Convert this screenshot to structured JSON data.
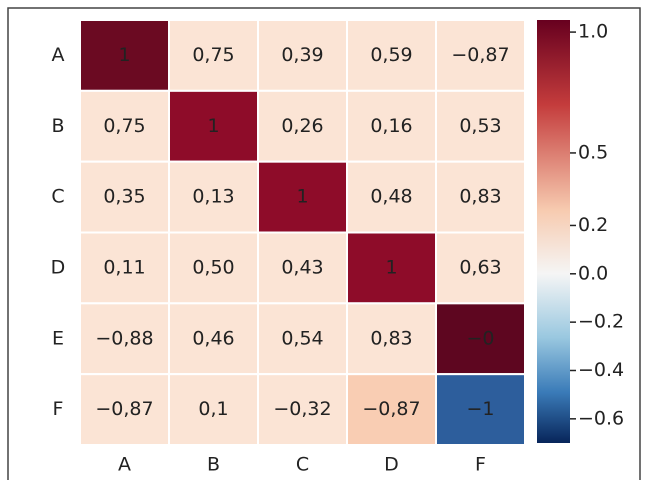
{
  "chart_data": {
    "type": "heatmap",
    "x_categories": [
      "A",
      "B",
      "C",
      "D",
      "F"
    ],
    "y_categories": [
      "A",
      "B",
      "C",
      "D",
      "E",
      "F"
    ],
    "values": [
      [
        1,
        0.75,
        0.39,
        0.59,
        -0.87
      ],
      [
        0.75,
        1,
        0.26,
        0.16,
        0.53
      ],
      [
        0.35,
        0.13,
        1,
        0.48,
        0.83
      ],
      [
        0.11,
        0.5,
        0.43,
        1,
        0.63
      ],
      [
        -0.88,
        0.46,
        0.54,
        0.83,
        0
      ],
      [
        -0.87,
        0.1,
        -0.32,
        -0.87,
        -1
      ]
    ],
    "value_labels": [
      [
        "1",
        "0,75",
        "0,39",
        "0,59",
        "−0,87"
      ],
      [
        "0,75",
        "1",
        "0,26",
        "0,16",
        "0,53"
      ],
      [
        "0,35",
        "0,13",
        "1",
        "0,48",
        "0,83"
      ],
      [
        "0,11",
        "0,50",
        "0,43",
        "1",
        "0,63"
      ],
      [
        "−0,88",
        "0,46",
        "0,54",
        "0,83",
        "−0"
      ],
      [
        "−0,87",
        "0,1",
        "−0,32",
        "−0,87",
        "−1"
      ]
    ],
    "colors": [
      [
        "#6b0a22",
        "#fbe4d5",
        "#fbe4d5",
        "#fbe4d5",
        "#fbe4d5"
      ],
      [
        "#fbe4d5",
        "#8e0c29",
        "#fbe4d5",
        "#fbe4d5",
        "#fbe4d5"
      ],
      [
        "#fbe4d5",
        "#fbe4d5",
        "#8e0c29",
        "#fbe4d5",
        "#fbe4d5"
      ],
      [
        "#fbe4d5",
        "#fbe4d5",
        "#fbe4d5",
        "#8e0c29",
        "#fbe4d5"
      ],
      [
        "#fbe4d5",
        "#fbe4d5",
        "#fbe4d5",
        "#fbe4d5",
        "#5e0620"
      ],
      [
        "#fbe4d5",
        "#fbe4d5",
        "#fbe4d5",
        "#f9cdb3",
        "#2d5e9c"
      ]
    ],
    "colorbar": {
      "ylim": [
        -0.7,
        1.05
      ],
      "yticks": [
        {
          "value": 1.0,
          "label": "1.0"
        },
        {
          "value": 0.5,
          "label": "0.5"
        },
        {
          "value": 0.2,
          "label": "0.2"
        },
        {
          "value": 0.0,
          "label": "0.0"
        },
        {
          "value": -0.2,
          "label": "−0.2"
        },
        {
          "value": -0.4,
          "label": "−0.4"
        },
        {
          "value": -0.6,
          "label": "−0.6"
        }
      ]
    }
  }
}
